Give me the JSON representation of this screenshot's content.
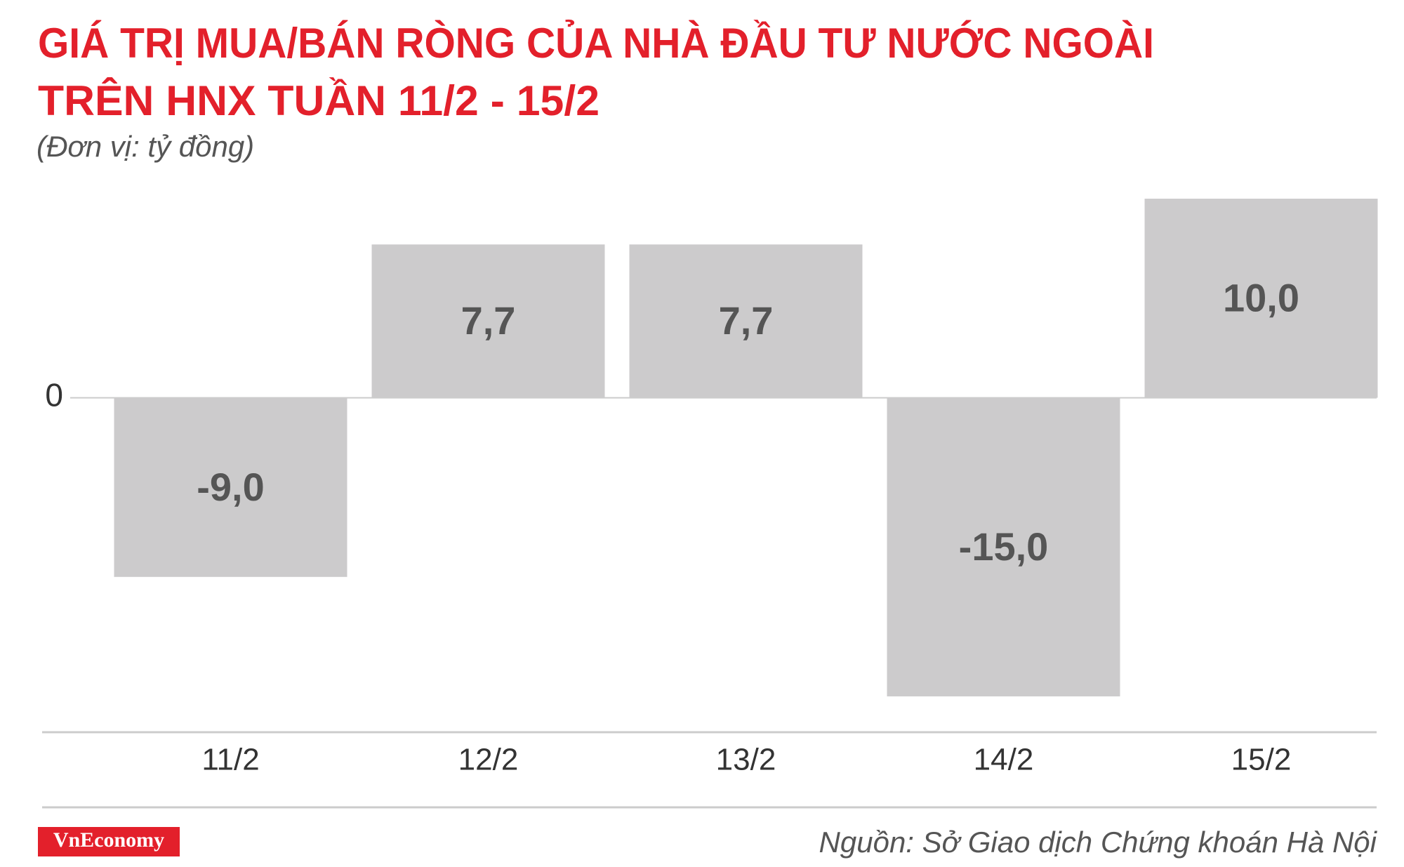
{
  "chart_data": {
    "type": "bar",
    "title": [
      "GIÁ TRỊ MUA/BÁN RÒNG CỦA NHÀ ĐẦU TƯ NƯỚC NGOÀI",
      "TRÊN HNX TUẦN 11/2 - 15/2"
    ],
    "subtitle": "(Đơn vị: tỷ đồng)",
    "categories": [
      "11/2",
      "12/2",
      "13/2",
      "14/2",
      "15/2"
    ],
    "values": [
      -9.0,
      7.7,
      7.7,
      -15.0,
      10.0
    ],
    "value_labels": [
      "-9,0",
      "7,7",
      "7,7",
      "-15,0",
      "10,0"
    ],
    "color": "#cccbcc",
    "ylim": [
      -16.8,
      10
    ],
    "yticks": [
      0
    ],
    "source": "Nguồn: Sở Giao dịch Chứng khoán Hà Nội",
    "logo": "VnEconomy"
  }
}
